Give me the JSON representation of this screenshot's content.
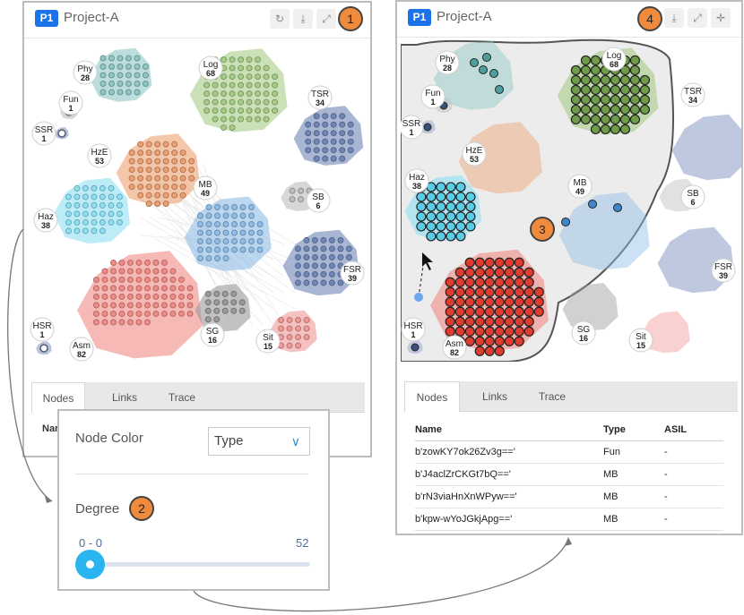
{
  "left_panel": {
    "badge": "P1",
    "title": "Project-A",
    "toolbar_icons": [
      "refresh-icon",
      "download-icon",
      "expand-icon"
    ],
    "callout": "1",
    "tabs": [
      "Nodes",
      "Links",
      "Trace"
    ],
    "table_header_partial": "Nar"
  },
  "right_panel": {
    "badge": "P1",
    "title": "Project-A",
    "toolbar_icons": [
      "download-icon",
      "expand-icon",
      "move-icon"
    ],
    "callout": "4",
    "tabs": [
      "Nodes",
      "Links",
      "Trace"
    ],
    "table": {
      "columns": [
        "Name",
        "Type",
        "ASIL"
      ],
      "rows": [
        [
          "b'zowKY7ok26Zv3g=='",
          "Fun",
          "-"
        ],
        [
          "b'J4aclZrCKGt7bQ=='",
          "MB",
          "-"
        ],
        [
          "b'rN3viaHnXnWPyw=='",
          "MB",
          "-"
        ],
        [
          "b'kpw-wYoJGkjApg=='",
          "MB",
          "-"
        ]
      ]
    }
  },
  "graph_callout": "3",
  "clusters": [
    {
      "name": "Phy",
      "count": "28"
    },
    {
      "name": "Log",
      "count": "68"
    },
    {
      "name": "Fun",
      "count": "1"
    },
    {
      "name": "SSR",
      "count": "1"
    },
    {
      "name": "TSR",
      "count": "34"
    },
    {
      "name": "HzE",
      "count": "53"
    },
    {
      "name": "Haz",
      "count": "38"
    },
    {
      "name": "MB",
      "count": "49"
    },
    {
      "name": "SB",
      "count": "6"
    },
    {
      "name": "FSR",
      "count": "39"
    },
    {
      "name": "HSR",
      "count": "1"
    },
    {
      "name": "Asm",
      "count": "82"
    },
    {
      "name": "SG",
      "count": "16"
    },
    {
      "name": "Sit",
      "count": "15"
    }
  ],
  "settings": {
    "node_color_label": "Node Color",
    "node_color_value": "Type",
    "degree_label": "Degree",
    "callout": "2",
    "range_value": "0 - 0",
    "range_max": "52",
    "range_fraction": 0.0
  },
  "colors": {
    "Phy": "#8fc7c5",
    "Log": "#a6cc87",
    "Fun": "#bdbdbd",
    "SSR": "#8a9dc4",
    "TSR": "#6f86b6",
    "HzE": "#eda172",
    "Haz": "#8fe0f2",
    "MB": "#8fbde6",
    "SB": "#bdbdbd",
    "FSR": "#6f86b6",
    "HSR": "#8a9dc4",
    "Asm": "#f08b86",
    "SG": "#9a9a9a",
    "Sit": "#ef9a97",
    "accent": "#1a73e8",
    "callout": "#f08a3c"
  }
}
